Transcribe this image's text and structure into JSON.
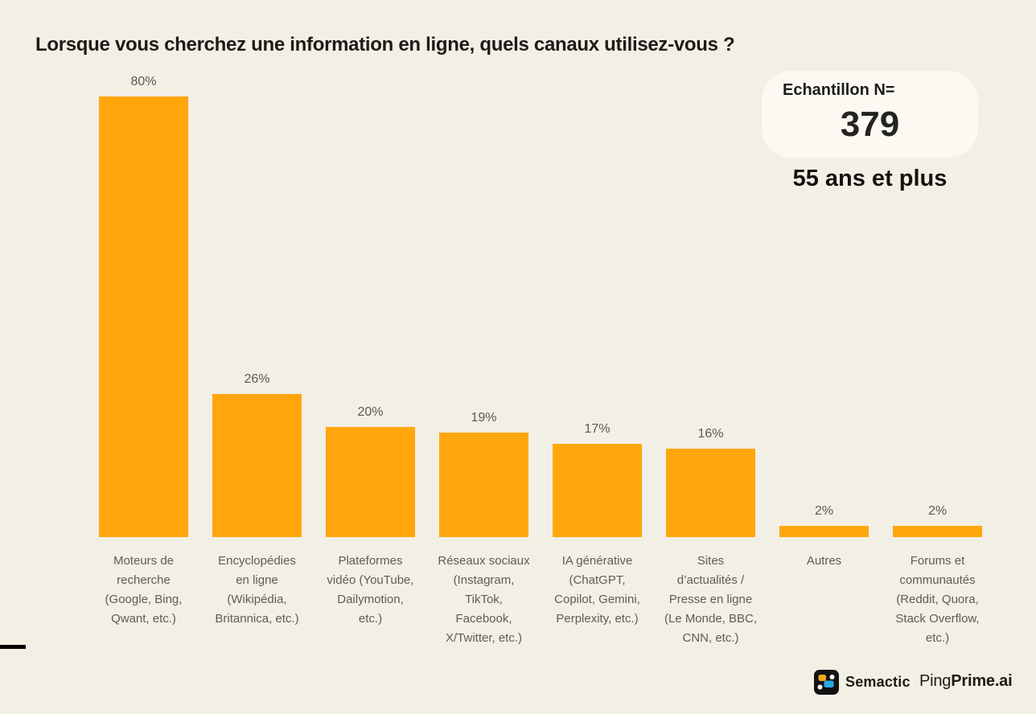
{
  "title": "Lorsque vous cherchez une information en ligne, quels canaux utilisez-vous ?",
  "sample_badge": {
    "label": "Echantillon N=",
    "value": "379",
    "subtitle": "55 ans et plus"
  },
  "footer": {
    "semactic_label": "Semactic",
    "pingprime_light": "Ping",
    "pingprime_bold": "Prime.ai"
  },
  "colors": {
    "bg": "#F2EFE5",
    "bar": "#FFA60D",
    "value_label": "#595959",
    "category_label": "#5E5C58",
    "badge_bg": "#FBF9F2",
    "title": "#1D1B18"
  },
  "chart_data": {
    "type": "bar",
    "title": "Lorsque vous cherchez une information en ligne, quels canaux utilisez-vous ?",
    "categories": [
      "Moteurs de\nrecherche\n(Google, Bing,\nQwant, etc.)",
      "Encyclopédies\nen ligne\n(Wikipédia,\nBritannica, etc.)",
      "Plateformes\nvidéo (YouTube,\nDailymotion,\netc.)",
      "Réseaux sociaux\n(Instagram,\nTikTok,\nFacebook,\nX/Twitter, etc.)",
      "IA générative\n(ChatGPT,\nCopilot, Gemini,\nPerplexity, etc.)",
      "Sites\nd’actualités /\nPresse en ligne\n(Le Monde, BBC,\nCNN, etc.)",
      "Autres",
      "Forums et\ncommunautés\n(Reddit, Quora,\nStack Overflow,\netc.)"
    ],
    "values": [
      80,
      26,
      20,
      19,
      17,
      16,
      2,
      2
    ],
    "value_labels": [
      "80%",
      "26%",
      "20%",
      "19%",
      "17%",
      "16%",
      "2%",
      "2%"
    ],
    "unit": "%",
    "ylim": [
      0,
      80
    ],
    "grid": false,
    "legend": false,
    "bar_color": "#FFA60D",
    "value_label_color": "#595959"
  }
}
